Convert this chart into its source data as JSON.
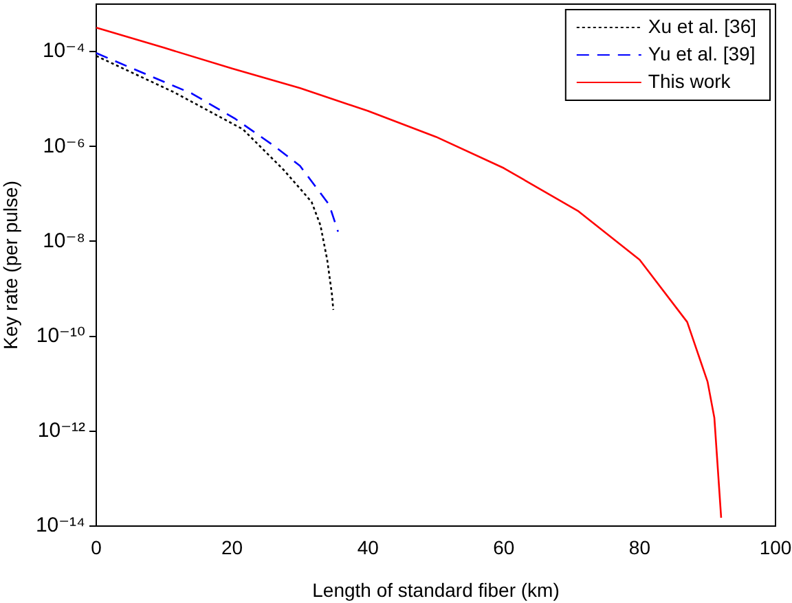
{
  "chart_data": {
    "type": "line",
    "xlabel": "Length of standard fiber (km)",
    "ylabel": "Key rate (per pulse)",
    "xlim": [
      0,
      100
    ],
    "xticks": [
      0,
      20,
      40,
      60,
      80,
      100
    ],
    "ylim": [
      1e-14,
      0.001
    ],
    "yticks": [
      {
        "value": 1e-14,
        "label": "10⁻¹⁴"
      },
      {
        "value": 1e-12,
        "label": "10⁻¹²"
      },
      {
        "value": 1e-10,
        "label": "10⁻¹⁰"
      },
      {
        "value": 1e-08,
        "label": "10⁻⁸"
      },
      {
        "value": 1e-06,
        "label": "10⁻⁶"
      },
      {
        "value": 0.0001,
        "label": "10⁻⁴"
      }
    ],
    "log": "y",
    "grid": false,
    "legend": "top right",
    "marker": "none",
    "series": [
      {
        "name": "Xu et al. [36]",
        "color": "#000000",
        "line_style": "dotted",
        "x": [
          0,
          11.4,
          21.6,
          27.6,
          31.7,
          33,
          34,
          34.7,
          34.9
        ],
        "values": [
          8.1e-05,
          1.4e-05,
          2.3e-06,
          3.2e-07,
          6.8e-08,
          2.2e-08,
          4.1e-09,
          7.6e-10,
          3.6e-10
        ]
      },
      {
        "name": "Yu et al. [39]",
        "color": "#0000ff",
        "line_style": "dashed",
        "x": [
          0,
          4.7,
          14.1,
          20.5,
          26.3,
          30,
          34.3,
          35.6
        ],
        "values": [
          9.3e-05,
          4.8e-05,
          1.3e-05,
          3.8e-06,
          1e-06,
          3.9e-07,
          5.9e-08,
          1.6e-08
        ]
      },
      {
        "name": "This work",
        "color": "#ff0000",
        "line_style": "solid",
        "x": [
          0,
          10,
          20,
          30,
          40,
          50,
          60,
          71,
          80,
          87,
          90,
          91,
          92
        ],
        "values": [
          0.00032,
          0.00012,
          4.4e-05,
          1.7e-05,
          5.6e-06,
          1.6e-06,
          3.5e-07,
          4.3e-08,
          4.1e-09,
          2e-10,
          1.1e-11,
          1.9e-12,
          1.5e-14
        ]
      }
    ]
  }
}
